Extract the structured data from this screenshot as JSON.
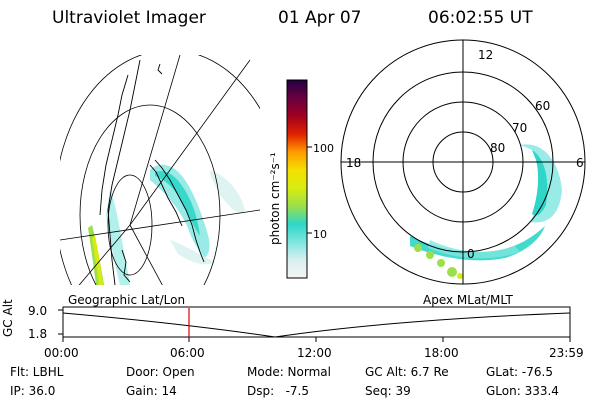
{
  "header": {
    "instrument": "Ultraviolet Imager",
    "date": "01 Apr 07",
    "time": "06:02:55 UT"
  },
  "left_map": {
    "label": "Geographic Lat/Lon"
  },
  "right_map": {
    "label": "Apex MLat/MLT",
    "mlt_labels": [
      "12",
      "18",
      "6",
      "0"
    ],
    "lat_labels": [
      "60",
      "70",
      "80"
    ]
  },
  "colorbar": {
    "unit_label": "photon cm⁻²s⁻¹",
    "ticks": [
      "100",
      "10"
    ],
    "scale": "log",
    "colors": [
      "#f4f4f4",
      "#d8f0f0",
      "#7ee6e0",
      "#2fd6c8",
      "#9be04a",
      "#d8ec10",
      "#f4e000",
      "#ff9a00",
      "#e02000",
      "#a00020",
      "#6a0040",
      "#200040"
    ]
  },
  "timeline": {
    "axis_label": "GC Alt",
    "y_ticks": [
      "9.0",
      "1.8"
    ],
    "x_ticks": [
      "00:00",
      "06:00",
      "12:00",
      "18:00",
      "23:59"
    ],
    "current_marker_time": "06:02:55",
    "marker_color": "#dd0000"
  },
  "info": {
    "filter": "Flt: LBHL",
    "ip": "IP: 36.0",
    "door": "Door: Open",
    "gain": "Gain: 14",
    "mode": "Mode: Normal",
    "dsp": "Dsp:   -7.5",
    "gc_alt": "GC Alt: 6.7 Re",
    "seq": "Seq: 39",
    "glat": "GLat: -76.5",
    "glon": "GLon: 333.4"
  }
}
